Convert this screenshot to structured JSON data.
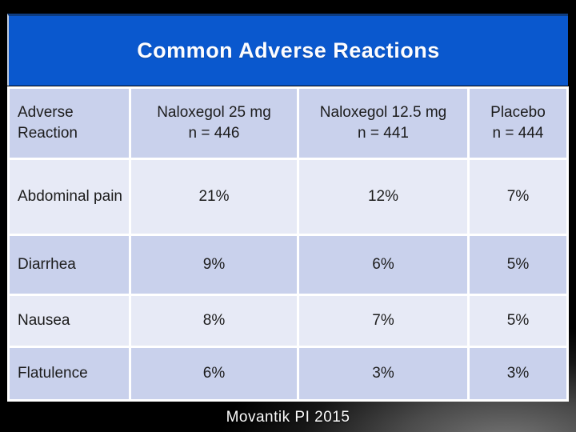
{
  "slide": {
    "title": "Common Adverse Reactions",
    "footer": "Movantik PI 2015"
  },
  "table": {
    "columns": [
      {
        "label": "Adverse Reaction",
        "sub": ""
      },
      {
        "label": "Naloxegol 25 mg",
        "sub": "n = 446"
      },
      {
        "label": "Naloxegol 12.5 mg",
        "sub": "n = 441"
      },
      {
        "label": "Placebo",
        "sub": "n = 444"
      }
    ],
    "rows": [
      {
        "label": "Abdominal pain",
        "values": [
          "21%",
          "12%",
          "7%"
        ]
      },
      {
        "label": "Diarrhea",
        "values": [
          "9%",
          "6%",
          "5%"
        ]
      },
      {
        "label": "Nausea",
        "values": [
          "8%",
          "7%",
          "5%"
        ]
      },
      {
        "label": "Flatulence",
        "values": [
          "6%",
          "3%",
          "3%"
        ]
      }
    ]
  },
  "colors": {
    "title_bar": "#0a58ce",
    "title_bar_top_edge": "#0e3d82",
    "header_row_fill": "#c9d1ec",
    "row_fill_light": "#e7eaf6",
    "row_fill_dark": "#c9d1ec",
    "grid_lines": "#ffffff",
    "table_text": "#1c1c1c",
    "title_text": "#ffffff",
    "footer_text": "#fbfbfb",
    "slide_background": "#000000"
  }
}
